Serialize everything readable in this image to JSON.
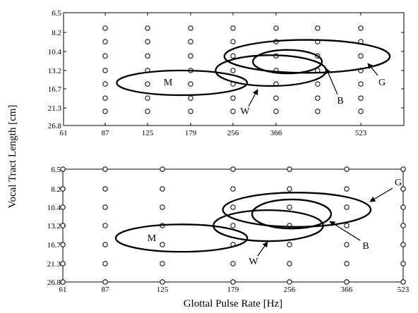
{
  "figure": {
    "ylabel": "Vocal Tract Length [cm]",
    "xlabel": "Glottal Pulse Rate [Hz]"
  },
  "colors": {
    "ink": "#000000",
    "background": "#ffffff"
  },
  "chart_data": [
    {
      "panel": "top",
      "type": "scatter",
      "x_ticks": [
        61,
        87,
        125,
        179,
        256,
        366,
        523
      ],
      "y_ticks": [
        6.5,
        8.2,
        10.4,
        13.2,
        16.7,
        21.3,
        26.8
      ],
      "xlim": [
        61,
        627
      ],
      "ylim": [
        6.5,
        26.8
      ],
      "y_reversed": true,
      "grid": false,
      "marker": "open-circle",
      "point_grid": {
        "x": [
          87,
          125,
          179,
          256,
          366,
          436,
          523
        ],
        "y": [
          7.8,
          9.2,
          11.0,
          13.2,
          15.7,
          18.8,
          22.3
        ]
      },
      "ellipses": [
        {
          "label": "M",
          "gpr_range": [
            96,
            288
          ],
          "vtl_range": [
            13.2,
            18.1
          ]
        },
        {
          "label": "W",
          "gpr_range": [
            221,
            452
          ],
          "vtl_range": [
            10.9,
            16.1
          ]
        },
        {
          "label": "B",
          "gpr_range": [
            302,
            444
          ],
          "vtl_range": [
            10.2,
            13.7
          ]
        },
        {
          "label": "G",
          "gpr_range": [
            238,
            591
          ],
          "vtl_range": [
            9.0,
            13.6
          ]
        }
      ]
    },
    {
      "panel": "bottom",
      "type": "scatter",
      "x_ticks": [
        61,
        87,
        125,
        179,
        256,
        366,
        523
      ],
      "y_ticks": [
        6.5,
        8.2,
        10.4,
        13.2,
        16.7,
        21.3,
        26.8
      ],
      "xlim": [
        61,
        523
      ],
      "ylim": [
        6.5,
        26.8
      ],
      "y_reversed": true,
      "grid": false,
      "marker": "open-circle",
      "point_grid": {
        "x": [
          61,
          87,
          125,
          179,
          256,
          366,
          523
        ],
        "y": [
          6.5,
          8.2,
          10.4,
          13.2,
          16.7,
          21.3,
          26.8
        ]
      },
      "ellipses": [
        {
          "label": "M",
          "gpr_range": [
            93,
            196
          ],
          "vtl_range": [
            13.0,
            18.3
          ]
        },
        {
          "label": "W",
          "gpr_range": [
            162,
            316
          ],
          "vtl_range": [
            10.8,
            16.0
          ]
        },
        {
          "label": "B",
          "gpr_range": [
            202,
            332
          ],
          "vtl_range": [
            9.4,
            13.7
          ]
        },
        {
          "label": "G",
          "gpr_range": [
            170,
            426
          ],
          "vtl_range": [
            8.6,
            13.4
          ]
        }
      ]
    }
  ]
}
